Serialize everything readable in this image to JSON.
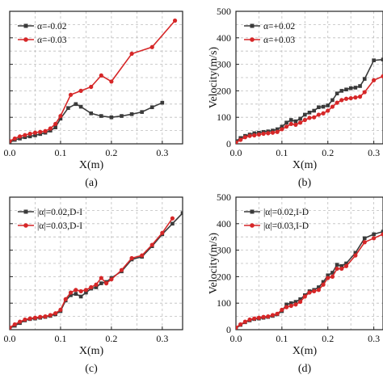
{
  "colors": {
    "series1": "#3a3a3a",
    "series2": "#d62728",
    "grid": "#bdbdbd"
  },
  "chart_data": [
    {
      "panel_label": "(a)",
      "type": "line",
      "xlabel": "X(m)",
      "ylabel": "",
      "xlim": [
        0,
        0.34
      ],
      "ylim": [
        0,
        500
      ],
      "xticks": [
        "0.0",
        "0.1",
        "0.2",
        "0.3"
      ],
      "yticks": [
        "0",
        "100",
        "200",
        "300",
        "400",
        "500"
      ],
      "grid": true,
      "legend": "top-left",
      "series": [
        {
          "name": "α=-0.02",
          "color": "series1",
          "marker": "square",
          "x": [
            0.0,
            0.01,
            0.02,
            0.03,
            0.04,
            0.05,
            0.06,
            0.07,
            0.08,
            0.09,
            0.1,
            0.115,
            0.13,
            0.14,
            0.16,
            0.18,
            0.2,
            0.22,
            0.24,
            0.26,
            0.28,
            0.3
          ],
          "y": [
            5,
            15,
            20,
            25,
            28,
            32,
            37,
            42,
            50,
            62,
            95,
            135,
            150,
            140,
            115,
            105,
            100,
            105,
            112,
            120,
            138,
            155
          ]
        },
        {
          "name": "α=-0.03",
          "color": "series2",
          "marker": "circle",
          "x": [
            0.0,
            0.01,
            0.02,
            0.03,
            0.04,
            0.05,
            0.06,
            0.07,
            0.08,
            0.09,
            0.1,
            0.12,
            0.14,
            0.16,
            0.18,
            0.2,
            0.24,
            0.28,
            0.325
          ],
          "y": [
            10,
            20,
            28,
            33,
            38,
            42,
            45,
            48,
            58,
            75,
            105,
            185,
            200,
            215,
            258,
            235,
            340,
            365,
            465
          ]
        }
      ]
    },
    {
      "panel_label": "(b)",
      "type": "line",
      "xlabel": "X(m)",
      "ylabel": "Velocity(m/s)",
      "xlim": [
        0,
        0.32
      ],
      "ylim": [
        0,
        500
      ],
      "xticks": [
        "0.0",
        "0.1",
        "0.2",
        "0.3"
      ],
      "yticks": [
        "0",
        "100",
        "200",
        "300",
        "400",
        "500"
      ],
      "grid": true,
      "legend": "top-left",
      "series": [
        {
          "name": "α=+0.02",
          "color": "series1",
          "marker": "square",
          "x": [
            0.0,
            0.01,
            0.02,
            0.03,
            0.04,
            0.05,
            0.06,
            0.07,
            0.08,
            0.09,
            0.1,
            0.11,
            0.12,
            0.13,
            0.14,
            0.15,
            0.16,
            0.17,
            0.18,
            0.19,
            0.2,
            0.21,
            0.22,
            0.23,
            0.24,
            0.25,
            0.26,
            0.27,
            0.28,
            0.3,
            0.32
          ],
          "y": [
            10,
            22,
            30,
            35,
            40,
            42,
            45,
            47,
            50,
            55,
            65,
            80,
            90,
            85,
            95,
            110,
            118,
            125,
            138,
            140,
            145,
            165,
            190,
            200,
            205,
            210,
            212,
            218,
            245,
            315,
            318
          ]
        },
        {
          "name": "α=+0.03",
          "color": "series2",
          "marker": "circle",
          "x": [
            0.0,
            0.01,
            0.02,
            0.03,
            0.04,
            0.05,
            0.06,
            0.07,
            0.08,
            0.09,
            0.1,
            0.11,
            0.12,
            0.13,
            0.14,
            0.15,
            0.16,
            0.17,
            0.18,
            0.19,
            0.2,
            0.21,
            0.22,
            0.23,
            0.24,
            0.25,
            0.26,
            0.27,
            0.28,
            0.3,
            0.32
          ],
          "y": [
            5,
            15,
            25,
            30,
            32,
            35,
            38,
            40,
            42,
            45,
            55,
            65,
            75,
            72,
            80,
            90,
            98,
            100,
            110,
            115,
            125,
            140,
            155,
            165,
            170,
            172,
            175,
            178,
            195,
            240,
            255
          ]
        }
      ]
    },
    {
      "panel_label": "(c)",
      "type": "line",
      "xlabel": "X(m)",
      "ylabel": "",
      "xlim": [
        0,
        0.34
      ],
      "ylim": [
        0,
        500
      ],
      "xticks": [
        "0.0",
        "0.1",
        "0.2",
        "0.3"
      ],
      "yticks": [
        "0",
        "100",
        "200",
        "300",
        "400",
        "500"
      ],
      "grid": true,
      "legend": "top-left",
      "series": [
        {
          "name": "|α|=0.02,D-I",
          "color": "series1",
          "marker": "square",
          "x": [
            0.0,
            0.01,
            0.02,
            0.03,
            0.04,
            0.05,
            0.06,
            0.07,
            0.08,
            0.09,
            0.1,
            0.11,
            0.12,
            0.13,
            0.14,
            0.15,
            0.16,
            0.17,
            0.18,
            0.19,
            0.2,
            0.22,
            0.24,
            0.26,
            0.28,
            0.3,
            0.32,
            0.34
          ],
          "y": [
            5,
            15,
            25,
            35,
            40,
            42,
            45,
            48,
            52,
            58,
            70,
            110,
            130,
            135,
            125,
            140,
            155,
            160,
            175,
            180,
            195,
            220,
            265,
            275,
            315,
            360,
            400,
            440
          ]
        },
        {
          "name": "|α|=0.03,D-I",
          "color": "series2",
          "marker": "circle",
          "x": [
            0.0,
            0.01,
            0.02,
            0.03,
            0.04,
            0.05,
            0.06,
            0.07,
            0.08,
            0.09,
            0.1,
            0.11,
            0.12,
            0.13,
            0.14,
            0.15,
            0.16,
            0.17,
            0.18,
            0.19,
            0.2,
            0.22,
            0.24,
            0.26,
            0.28,
            0.3,
            0.32
          ],
          "y": [
            8,
            20,
            30,
            38,
            42,
            45,
            48,
            50,
            55,
            62,
            75,
            115,
            140,
            150,
            145,
            150,
            160,
            170,
            195,
            175,
            190,
            225,
            270,
            280,
            320,
            365,
            420
          ]
        }
      ]
    },
    {
      "panel_label": "(d)",
      "type": "line",
      "xlabel": "X(m)",
      "ylabel": "Velocity(m/s)",
      "xlim": [
        0,
        0.32
      ],
      "ylim": [
        0,
        500
      ],
      "xticks": [
        "0.0",
        "0.1",
        "0.2",
        "0.3"
      ],
      "yticks": [
        "0",
        "100",
        "200",
        "300",
        "400",
        "500"
      ],
      "grid": true,
      "legend": "top-left",
      "series": [
        {
          "name": "|α|=0.02,I-D",
          "color": "series1",
          "marker": "square",
          "x": [
            0.0,
            0.01,
            0.02,
            0.03,
            0.04,
            0.05,
            0.06,
            0.07,
            0.08,
            0.09,
            0.1,
            0.11,
            0.12,
            0.13,
            0.14,
            0.15,
            0.16,
            0.17,
            0.18,
            0.19,
            0.2,
            0.21,
            0.22,
            0.23,
            0.24,
            0.26,
            0.28,
            0.3,
            0.32
          ],
          "y": [
            5,
            18,
            28,
            35,
            40,
            42,
            45,
            48,
            52,
            58,
            70,
            95,
            100,
            105,
            115,
            130,
            145,
            150,
            160,
            180,
            205,
            215,
            245,
            240,
            250,
            290,
            345,
            360,
            370
          ]
        },
        {
          "name": "|α|=0.03,I-D",
          "color": "series2",
          "marker": "circle",
          "x": [
            0.0,
            0.01,
            0.02,
            0.03,
            0.04,
            0.05,
            0.06,
            0.07,
            0.08,
            0.09,
            0.1,
            0.11,
            0.12,
            0.13,
            0.14,
            0.15,
            0.16,
            0.17,
            0.18,
            0.19,
            0.2,
            0.21,
            0.22,
            0.23,
            0.24,
            0.26,
            0.28,
            0.3,
            0.32
          ],
          "y": [
            8,
            20,
            30,
            38,
            42,
            45,
            48,
            50,
            55,
            60,
            75,
            85,
            90,
            95,
            105,
            125,
            140,
            145,
            150,
            170,
            195,
            200,
            230,
            230,
            240,
            280,
            330,
            345,
            360
          ]
        }
      ]
    }
  ]
}
